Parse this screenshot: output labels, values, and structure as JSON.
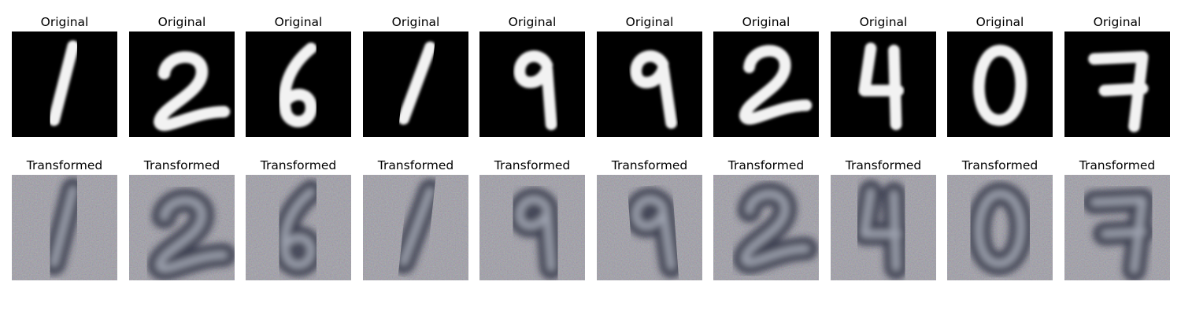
{
  "rows": [
    {
      "title": "Original",
      "style": "mnist",
      "background": "#000000",
      "stroke": "#f2f2f2",
      "panels": [
        {
          "digit": "1"
        },
        {
          "digit": "2"
        },
        {
          "digit": "6"
        },
        {
          "digit": "1"
        },
        {
          "digit": "9"
        },
        {
          "digit": "9"
        },
        {
          "digit": "2"
        },
        {
          "digit": "4"
        },
        {
          "digit": "0"
        },
        {
          "digit": "7"
        }
      ]
    },
    {
      "title": "Transformed",
      "style": "svhn",
      "background": "#8c8a90",
      "stroke": "#2e3246",
      "highlight": "#c6ccd6",
      "panels": [
        {
          "digit": "1"
        },
        {
          "digit": "2"
        },
        {
          "digit": "6"
        },
        {
          "digit": "1"
        },
        {
          "digit": "9"
        },
        {
          "digit": "9"
        },
        {
          "digit": "2"
        },
        {
          "digit": "4"
        },
        {
          "digit": "0"
        },
        {
          "digit": "7"
        }
      ]
    }
  ]
}
